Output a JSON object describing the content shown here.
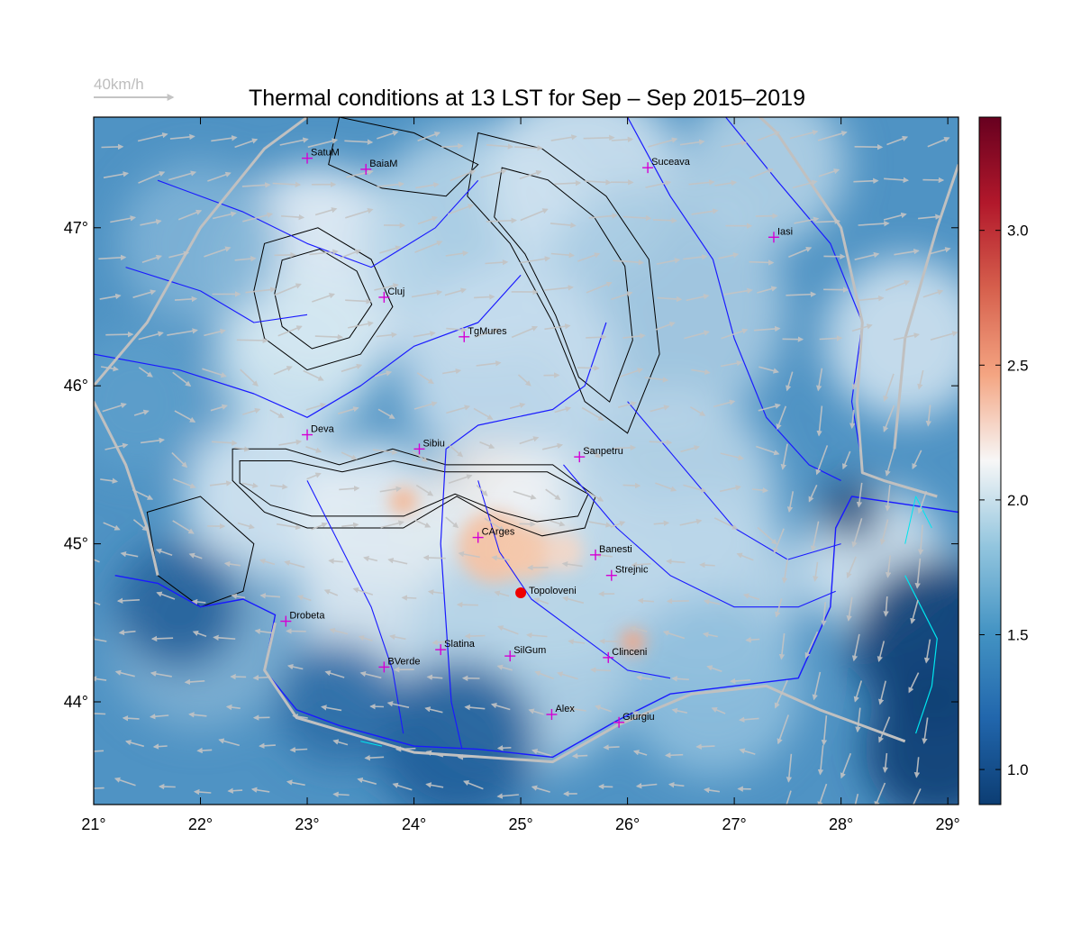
{
  "title": "Thermal conditions at 13 LST for Sep – Sep  2015–2019",
  "wind_reference": {
    "label": "40km/h",
    "color": "#bdbdbd"
  },
  "map": {
    "lon_range": [
      21,
      29.1
    ],
    "lat_range": [
      43.35,
      47.7
    ],
    "lon_ticks": [
      {
        "value": 21,
        "label": "21°"
      },
      {
        "value": 22,
        "label": "22°"
      },
      {
        "value": 23,
        "label": "23°"
      },
      {
        "value": 24,
        "label": "24°"
      },
      {
        "value": 25,
        "label": "25°"
      },
      {
        "value": 26,
        "label": "26°"
      },
      {
        "value": 27,
        "label": "27°"
      },
      {
        "value": 28,
        "label": "28°"
      },
      {
        "value": 29,
        "label": "29°"
      }
    ],
    "lat_ticks": [
      {
        "value": 44,
        "label": "44°"
      },
      {
        "value": 45,
        "label": "45°"
      },
      {
        "value": 46,
        "label": "46°"
      },
      {
        "value": 47,
        "label": "47°"
      }
    ],
    "colors": {
      "river": "#1a1aff",
      "border": "#c0c0c0",
      "contour": "#000000",
      "marker": "#d400d4",
      "highlight": "#ee0000",
      "lake": "#00e5ee"
    }
  },
  "colorbar": {
    "range": [
      0.87,
      3.42
    ],
    "ticks": [
      {
        "value": 1.0,
        "label": "1.0"
      },
      {
        "value": 1.5,
        "label": "1.5"
      },
      {
        "value": 2.0,
        "label": "2.0"
      },
      {
        "value": 2.5,
        "label": "2.5"
      },
      {
        "value": 3.0,
        "label": "3.0"
      }
    ],
    "stops": [
      "#0c3d73",
      "#2166ac",
      "#4393c3",
      "#92c5de",
      "#f7f7f7",
      "#f4a582",
      "#d6604d",
      "#b2182b",
      "#67001f"
    ]
  },
  "cities": [
    {
      "name": "SatuM",
      "lon": 23.0,
      "lat": 47.44
    },
    {
      "name": "BaiaM",
      "lon": 23.55,
      "lat": 47.37
    },
    {
      "name": "Suceava",
      "lon": 26.19,
      "lat": 47.38
    },
    {
      "name": "Iasi",
      "lon": 27.37,
      "lat": 46.94
    },
    {
      "name": "Cluj",
      "lon": 23.72,
      "lat": 46.56
    },
    {
      "name": "TgMures",
      "lon": 24.47,
      "lat": 46.31
    },
    {
      "name": "Deva",
      "lon": 23.0,
      "lat": 45.69
    },
    {
      "name": "Sibiu",
      "lon": 24.05,
      "lat": 45.6
    },
    {
      "name": "Sanpetru",
      "lon": 25.55,
      "lat": 45.55
    },
    {
      "name": "CArges",
      "lon": 24.6,
      "lat": 45.04
    },
    {
      "name": "Banesti",
      "lon": 25.7,
      "lat": 44.93
    },
    {
      "name": "Strejnic",
      "lon": 25.85,
      "lat": 44.8
    },
    {
      "name": "Drobeta",
      "lon": 22.8,
      "lat": 44.51
    },
    {
      "name": "Slatina",
      "lon": 24.25,
      "lat": 44.33
    },
    {
      "name": "SilGum",
      "lon": 24.9,
      "lat": 44.29
    },
    {
      "name": "Clinceni",
      "lon": 25.82,
      "lat": 44.28
    },
    {
      "name": "BVerde",
      "lon": 23.72,
      "lat": 44.22
    },
    {
      "name": "Alex",
      "lon": 25.29,
      "lat": 43.92
    },
    {
      "name": "Giurgiu",
      "lon": 25.92,
      "lat": 43.87
    }
  ],
  "highlight_station": {
    "name": "Topoloveni",
    "lon": 25.0,
    "lat": 44.69
  }
}
